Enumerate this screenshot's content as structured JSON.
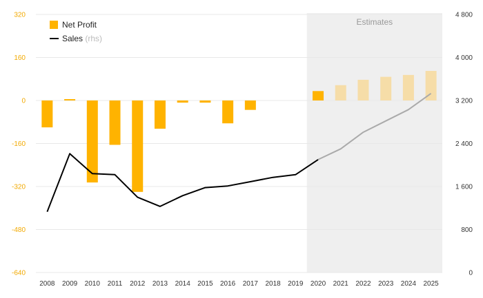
{
  "chart_data": {
    "type": "bar+line",
    "categories": [
      "2008",
      "2009",
      "2010",
      "2011",
      "2012",
      "2013",
      "2014",
      "2015",
      "2016",
      "2017",
      "2018",
      "2019",
      "2020",
      "2021",
      "2022",
      "2023",
      "2024",
      "2025"
    ],
    "series": [
      {
        "name": "Net Profit",
        "type": "bar",
        "axis": "left",
        "values": [
          -100,
          5,
          -305,
          -165,
          -340,
          -105,
          -8,
          -8,
          -85,
          -35,
          null,
          null,
          35,
          57,
          77,
          88,
          95,
          110
        ]
      },
      {
        "name": "Sales",
        "axis_note": "(rhs)",
        "type": "line",
        "axis": "right",
        "values": [
          1130,
          2210,
          1840,
          1820,
          1400,
          1230,
          1430,
          1580,
          1610,
          1690,
          1770,
          1820,
          2100,
          2300,
          2610,
          2820,
          3030,
          3330
        ]
      }
    ],
    "estimates_label": "Estimates",
    "estimates_from": "2020",
    "left_axis": {
      "ticks": [
        "320",
        "160",
        "0",
        "-160",
        "-320",
        "-480",
        "-640"
      ],
      "ylim": [
        -640,
        320
      ]
    },
    "right_axis": {
      "ticks": [
        "4 800",
        "4 000",
        "3 200",
        "2 400",
        "1 600",
        "800",
        "0"
      ],
      "ylim": [
        0,
        4800
      ]
    },
    "grid": true,
    "legend_position": "top-left",
    "colors": {
      "bar": "#FFB300",
      "bar_estimate": "#F6DDA8",
      "line": "#000000",
      "line_estimate": "#AAAAAA",
      "left_axis_text": "#F2A900",
      "estimates_bg": "#EFEFEF",
      "grid": "#E8E8E8"
    }
  }
}
